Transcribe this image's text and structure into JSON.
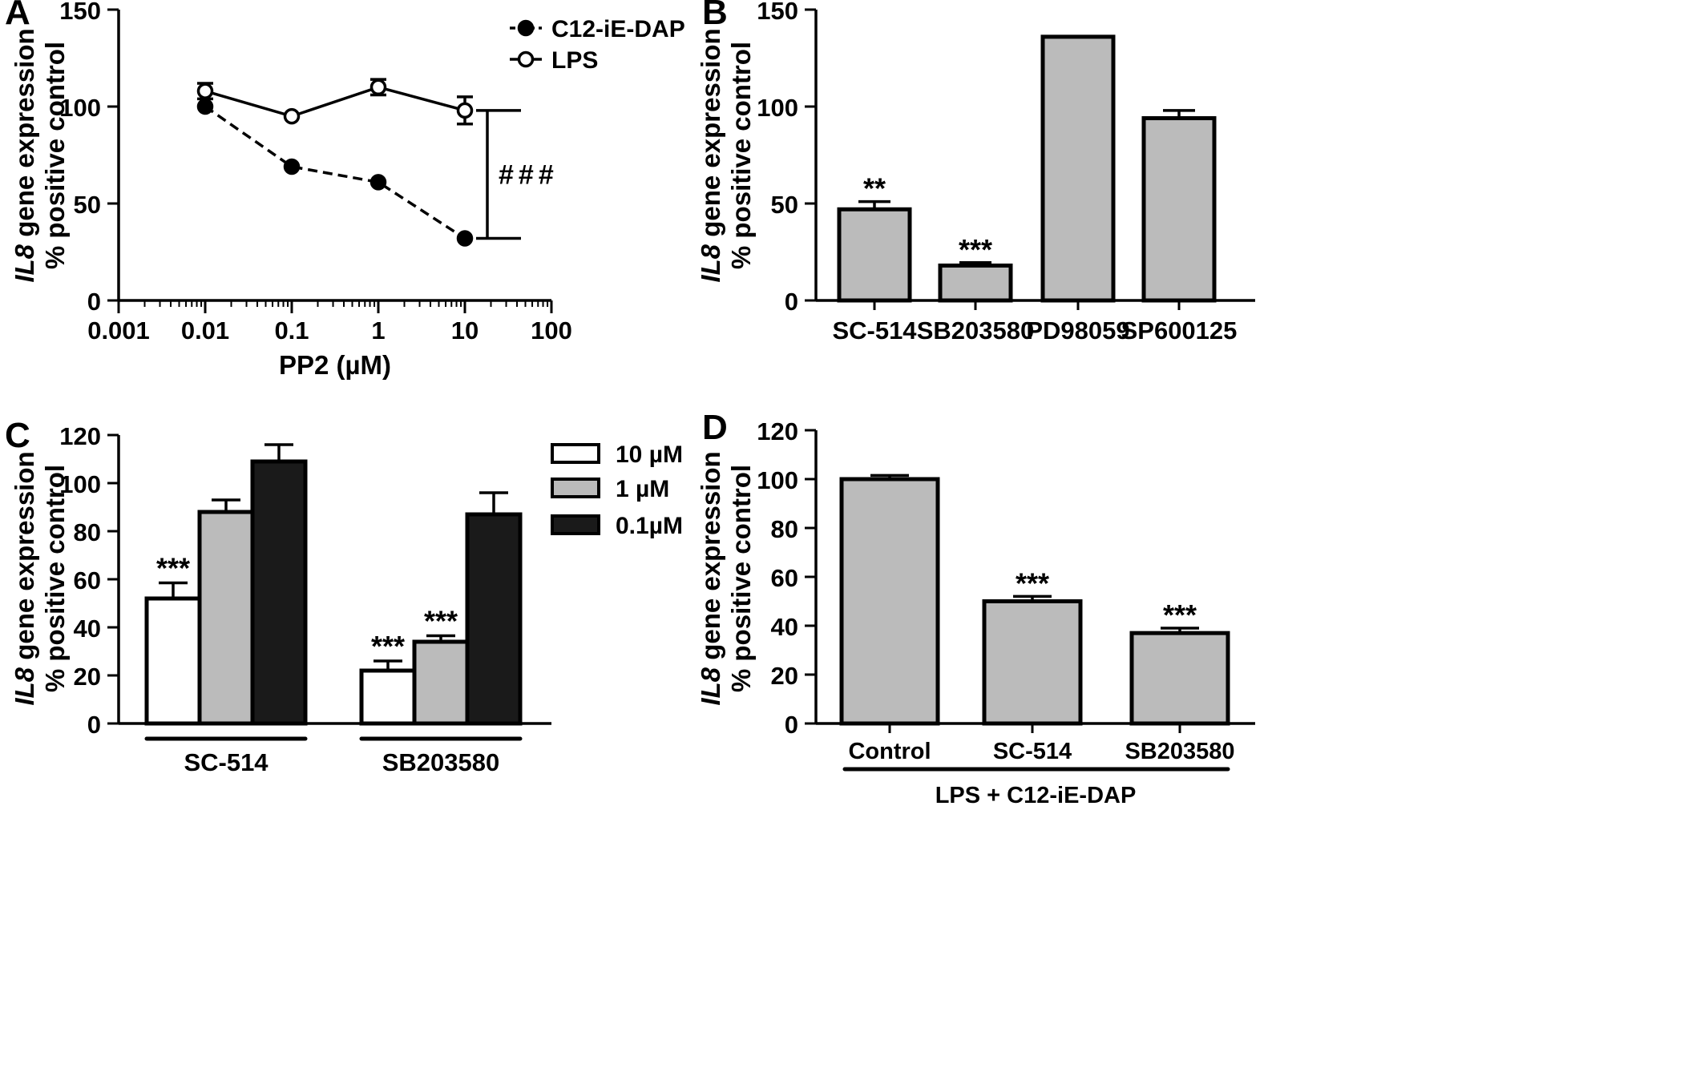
{
  "chart_data": [
    {
      "panel": "A",
      "type": "line",
      "xlabel": "PP2 (µM)",
      "ylabel_line1": "IL8",
      "ylabel_line1_rest": " gene expression",
      "ylabel_line2": "% positive control",
      "x_scale": "log",
      "xlim": [
        0.001,
        100
      ],
      "ylim": [
        0,
        150
      ],
      "x_ticks": [
        0.001,
        0.01,
        0.1,
        1,
        10,
        100
      ],
      "x_tick_labels": [
        "0.001",
        "0.01",
        "0.1",
        "1",
        "10",
        "100"
      ],
      "y_ticks": [
        0,
        50,
        100,
        150
      ],
      "y_tick_labels": [
        "0",
        "50",
        "100",
        "150"
      ],
      "legend_position": "top-right",
      "series": [
        {
          "name": "C12-iE-DAP",
          "style": "dashed",
          "marker": "filled-circle",
          "x": [
            0.01,
            0.1,
            1,
            10
          ],
          "y": [
            100,
            69,
            61,
            32
          ],
          "err": [
            0,
            0,
            0,
            0
          ]
        },
        {
          "name": "LPS",
          "style": "solid",
          "marker": "open-circle",
          "x": [
            0.01,
            0.1,
            1,
            10
          ],
          "y": [
            108,
            95,
            110,
            98
          ],
          "err": [
            4,
            0,
            4,
            7
          ]
        }
      ],
      "annotation": {
        "text": "###",
        "x": 10,
        "y_low": 32,
        "y_high": 98
      }
    },
    {
      "panel": "B",
      "type": "bar",
      "ylabel_line1": "IL8",
      "ylabel_line1_rest": " gene expression",
      "ylabel_line2": "% positive control",
      "ylim": [
        0,
        150
      ],
      "y_ticks": [
        0,
        50,
        100,
        150
      ],
      "y_tick_labels": [
        "0",
        "50",
        "100",
        "150"
      ],
      "categories": [
        "SC-514",
        "SB203580",
        "PD98059",
        "SP600125"
      ],
      "values": [
        47,
        18,
        136,
        94
      ],
      "errors": [
        4,
        1.5,
        0,
        4
      ],
      "significance": [
        "**",
        "***",
        "",
        ""
      ],
      "bar_color": "#bbbbbb"
    },
    {
      "panel": "C",
      "type": "bar",
      "ylabel_line1": "IL8",
      "ylabel_line1_rest": " gene expression",
      "ylabel_line2": "% positive control",
      "ylim": [
        0,
        120
      ],
      "y_ticks": [
        0,
        20,
        40,
        60,
        80,
        100,
        120
      ],
      "y_tick_labels": [
        "0",
        "20",
        "40",
        "60",
        "80",
        "100",
        "120"
      ],
      "categories": [
        "SC-514",
        "SB203580"
      ],
      "legend_position": "top-right",
      "series": [
        {
          "name": "10 µM",
          "color": "#ffffff",
          "values": [
            52,
            22
          ],
          "errors": [
            6.5,
            4
          ],
          "significance": [
            "***",
            "***"
          ]
        },
        {
          "name": "1 µM",
          "color": "#bbbbbb",
          "values": [
            88,
            34
          ],
          "errors": [
            5,
            2.5
          ],
          "significance": [
            "",
            "***"
          ]
        },
        {
          "name": "0.1µM",
          "color": "#1a1a1a",
          "values": [
            109,
            87
          ],
          "errors": [
            7,
            9
          ],
          "significance": [
            "",
            ""
          ]
        }
      ]
    },
    {
      "panel": "D",
      "type": "bar",
      "ylabel_line1": "IL8",
      "ylabel_line1_rest": " gene expression",
      "ylabel_line2": "% positive control",
      "ylim": [
        0,
        120
      ],
      "y_ticks": [
        0,
        20,
        40,
        60,
        80,
        100,
        120
      ],
      "y_tick_labels": [
        "0",
        "20",
        "40",
        "60",
        "80",
        "100",
        "120"
      ],
      "categories": [
        "Control",
        "SC-514",
        "SB203580"
      ],
      "values": [
        100,
        50,
        37
      ],
      "errors": [
        1.5,
        2,
        2
      ],
      "significance": [
        "",
        "***",
        "***"
      ],
      "group_label": "LPS + C12-iE-DAP",
      "bar_color": "#bbbbbb"
    }
  ]
}
